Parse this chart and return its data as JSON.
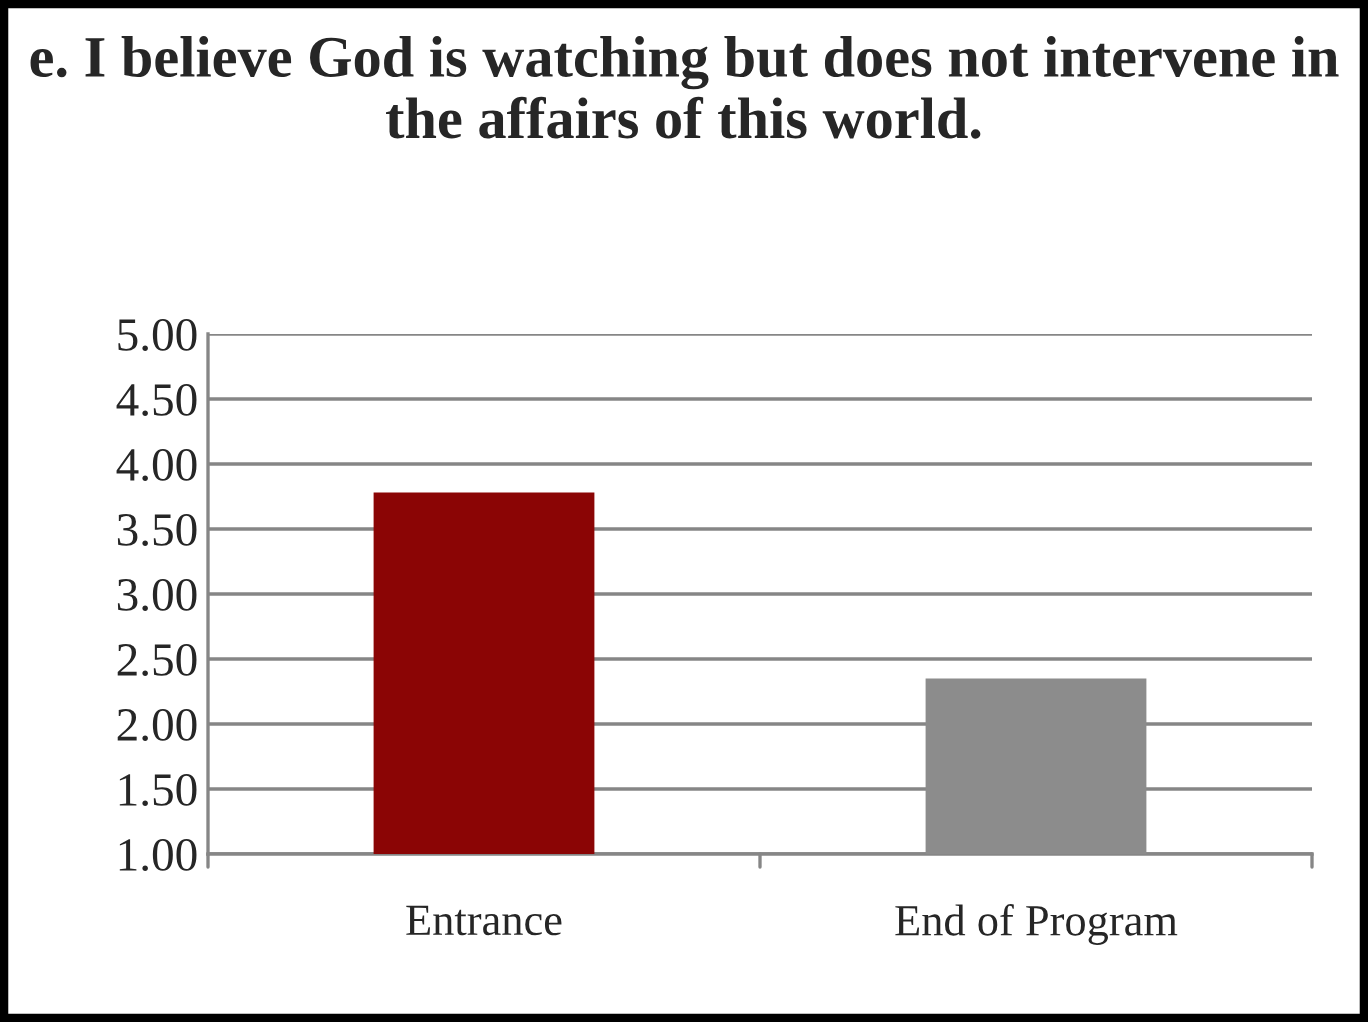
{
  "chart_data": {
    "type": "bar",
    "title": "e. I believe God is watching but does not intervene in the affairs of this world.",
    "categories": [
      "Entrance",
      "End of Program"
    ],
    "values": [
      3.78,
      2.35
    ],
    "colors": [
      "#8b0505",
      "#8c8c8c"
    ],
    "ylim": [
      1,
      5
    ],
    "yticks": [
      {
        "value": 1,
        "label": "1.00"
      },
      {
        "value": 1.5,
        "label": "1.50"
      },
      {
        "value": 2,
        "label": "2.00"
      },
      {
        "value": 2.5,
        "label": "2.50"
      },
      {
        "value": 3,
        "label": "3.00"
      },
      {
        "value": 3.5,
        "label": "3.50"
      },
      {
        "value": 4,
        "label": "4.00"
      },
      {
        "value": 4.5,
        "label": "4.50"
      },
      {
        "value": 5,
        "label": "5.00"
      }
    ],
    "grid": "y",
    "legend": false
  }
}
